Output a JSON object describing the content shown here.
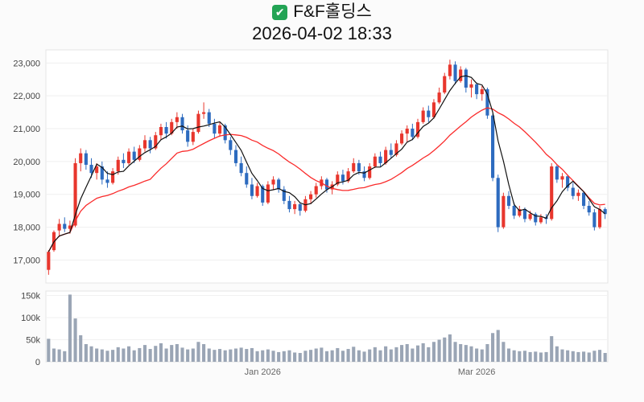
{
  "header": {
    "check_icon": "✔",
    "check_color": "#23a455",
    "title": "F&F홀딩스",
    "subtitle": "2026-04-02 18:33"
  },
  "chart_data": {
    "type": "candlestick",
    "title": "F&F홀딩스",
    "timestamp_label": "2026-04-02 18:33",
    "legend_position": "none",
    "grid": true,
    "y_axis": {
      "min": 16300,
      "max": 23400,
      "ticks": [
        17000,
        18000,
        19000,
        20000,
        21000,
        22000,
        23000
      ],
      "labels": [
        "17,000",
        "18,000",
        "19,000",
        "20,000",
        "21,000",
        "22,000",
        "23,000"
      ]
    },
    "volume_axis": {
      "max": 160000,
      "ticks": [
        0,
        50000,
        100000,
        150000
      ],
      "labels": [
        "0",
        "50k",
        "100k",
        "150k"
      ]
    },
    "x_ticks": [
      {
        "index": 40,
        "label": "Jan 2026"
      },
      {
        "index": 80,
        "label": "Mar 2026"
      }
    ],
    "ma": {
      "fast_window": 5,
      "slow_window": 20
    },
    "colors": {
      "up": "#e8362d",
      "down": "#2d6bbf",
      "ma_fast": "#111111",
      "ma_slow": "#fa2b2b",
      "volume": "#9aa5b5",
      "plot_bg": "#ffffff",
      "plot_border": "#e4e4e4",
      "gridline": "#efefef"
    },
    "candle_fields": [
      "open",
      "high",
      "low",
      "close",
      "volume"
    ],
    "candles": [
      [
        16700,
        17300,
        16550,
        17250,
        52000
      ],
      [
        17300,
        17900,
        17250,
        17850,
        30000
      ],
      [
        17900,
        18250,
        17700,
        18100,
        28000
      ],
      [
        18100,
        18300,
        17850,
        17950,
        24000
      ],
      [
        17950,
        18200,
        17800,
        18050,
        152000
      ],
      [
        18050,
        20100,
        18000,
        19950,
        98000
      ],
      [
        19950,
        20400,
        19700,
        20250,
        60000
      ],
      [
        20250,
        20350,
        19750,
        19900,
        40000
      ],
      [
        19900,
        20100,
        19500,
        19650,
        35000
      ],
      [
        19650,
        19950,
        19450,
        19850,
        30000
      ],
      [
        19850,
        20000,
        19300,
        19450,
        28000
      ],
      [
        19450,
        19700,
        19200,
        19350,
        25000
      ],
      [
        19350,
        19800,
        19300,
        19700,
        27000
      ],
      [
        19700,
        20150,
        19600,
        20050,
        33000
      ],
      [
        20050,
        20250,
        19800,
        19950,
        30000
      ],
      [
        19950,
        20400,
        19900,
        20300,
        35000
      ],
      [
        20300,
        20450,
        19950,
        20050,
        26000
      ],
      [
        20050,
        20500,
        20000,
        20400,
        31000
      ],
      [
        20400,
        20800,
        20300,
        20650,
        38000
      ],
      [
        20650,
        20750,
        20250,
        20400,
        29000
      ],
      [
        20400,
        20900,
        20350,
        20800,
        36000
      ],
      [
        20800,
        21150,
        20650,
        21050,
        42000
      ],
      [
        21050,
        21200,
        20700,
        20850,
        30000
      ],
      [
        20850,
        21300,
        20800,
        21200,
        38000
      ],
      [
        21200,
        21500,
        21000,
        21350,
        40000
      ],
      [
        21350,
        21450,
        20850,
        20950,
        32000
      ],
      [
        20950,
        21100,
        20450,
        20600,
        28000
      ],
      [
        20600,
        21000,
        20500,
        20900,
        30000
      ],
      [
        20900,
        21550,
        20850,
        21450,
        45000
      ],
      [
        21450,
        21800,
        21300,
        21500,
        40000
      ],
      [
        21500,
        21600,
        21050,
        21150,
        30000
      ],
      [
        21150,
        21300,
        20700,
        20850,
        27000
      ],
      [
        20850,
        21200,
        20750,
        21100,
        29000
      ],
      [
        21100,
        21150,
        20550,
        20650,
        26000
      ],
      [
        20650,
        20750,
        20200,
        20350,
        28000
      ],
      [
        20350,
        20500,
        19850,
        19950,
        30000
      ],
      [
        19950,
        20150,
        19550,
        19650,
        32000
      ],
      [
        19650,
        19850,
        19200,
        19300,
        29000
      ],
      [
        19300,
        19500,
        18850,
        18950,
        31000
      ],
      [
        18950,
        19350,
        18900,
        19250,
        24000
      ],
      [
        19250,
        19300,
        18650,
        18750,
        26000
      ],
      [
        18750,
        19400,
        18700,
        19300,
        28000
      ],
      [
        19300,
        19550,
        19150,
        19450,
        25000
      ],
      [
        19450,
        19500,
        19050,
        19150,
        22000
      ],
      [
        19150,
        19250,
        18700,
        18800,
        24000
      ],
      [
        18800,
        18950,
        18450,
        18550,
        26000
      ],
      [
        18550,
        18800,
        18400,
        18700,
        21000
      ],
      [
        18700,
        18750,
        18350,
        18500,
        20000
      ],
      [
        18500,
        18950,
        18450,
        18850,
        25000
      ],
      [
        18850,
        19100,
        18700,
        19000,
        27000
      ],
      [
        19000,
        19350,
        18900,
        19250,
        30000
      ],
      [
        19250,
        19550,
        19150,
        19450,
        32000
      ],
      [
        19450,
        19500,
        19050,
        19150,
        24000
      ],
      [
        19150,
        19400,
        19000,
        19300,
        26000
      ],
      [
        19300,
        19700,
        19250,
        19600,
        31000
      ],
      [
        19600,
        19750,
        19300,
        19400,
        25000
      ],
      [
        19400,
        19800,
        19350,
        19700,
        29000
      ],
      [
        19700,
        20100,
        19650,
        19950,
        34000
      ],
      [
        19950,
        20050,
        19600,
        19700,
        26000
      ],
      [
        19700,
        19850,
        19400,
        19500,
        23000
      ],
      [
        19500,
        19950,
        19450,
        19850,
        28000
      ],
      [
        19850,
        20250,
        19800,
        20150,
        33000
      ],
      [
        20150,
        20300,
        19850,
        19950,
        26000
      ],
      [
        19950,
        20450,
        19900,
        20350,
        35000
      ],
      [
        20350,
        20550,
        20100,
        20200,
        28000
      ],
      [
        20200,
        20650,
        20150,
        20550,
        33000
      ],
      [
        20550,
        20950,
        20500,
        20850,
        38000
      ],
      [
        20850,
        21100,
        20600,
        21000,
        40000
      ],
      [
        21000,
        21150,
        20650,
        20750,
        30000
      ],
      [
        20750,
        21300,
        20700,
        21200,
        37000
      ],
      [
        21200,
        21650,
        21150,
        21550,
        42000
      ],
      [
        21550,
        21700,
        21200,
        21350,
        33000
      ],
      [
        21350,
        21900,
        21300,
        21800,
        45000
      ],
      [
        21800,
        22250,
        21750,
        22100,
        50000
      ],
      [
        22100,
        22700,
        22050,
        22600,
        55000
      ],
      [
        22600,
        23100,
        22500,
        22950,
        62000
      ],
      [
        22950,
        23050,
        22350,
        22450,
        45000
      ],
      [
        22450,
        22900,
        22400,
        22800,
        40000
      ],
      [
        22800,
        22850,
        22100,
        22250,
        38000
      ],
      [
        22250,
        22500,
        21950,
        22350,
        35000
      ],
      [
        22350,
        22400,
        21900,
        22050,
        30000
      ],
      [
        22050,
        22300,
        21850,
        22200,
        28000
      ],
      [
        22200,
        22250,
        21300,
        21400,
        40000
      ],
      [
        21400,
        21450,
        19400,
        19500,
        65000
      ],
      [
        19500,
        19600,
        17850,
        18000,
        72000
      ],
      [
        18000,
        19050,
        17950,
        18950,
        45000
      ],
      [
        18950,
        19100,
        18550,
        18650,
        30000
      ],
      [
        18650,
        18750,
        18250,
        18350,
        26000
      ],
      [
        18350,
        18650,
        18300,
        18550,
        24000
      ],
      [
        18550,
        18600,
        18150,
        18250,
        25000
      ],
      [
        18250,
        18500,
        18200,
        18400,
        22000
      ],
      [
        18400,
        18450,
        18050,
        18150,
        23000
      ],
      [
        18150,
        18400,
        18100,
        18300,
        21000
      ],
      [
        18300,
        18400,
        18100,
        18250,
        22000
      ],
      [
        18250,
        19950,
        18200,
        19850,
        58000
      ],
      [
        19850,
        19900,
        19350,
        19450,
        35000
      ],
      [
        19450,
        19650,
        19200,
        19550,
        28000
      ],
      [
        19550,
        19600,
        19100,
        19200,
        26000
      ],
      [
        19200,
        19350,
        18850,
        18950,
        24000
      ],
      [
        18950,
        19150,
        18800,
        19050,
        22000
      ],
      [
        19050,
        19100,
        18550,
        18650,
        23000
      ],
      [
        18650,
        18800,
        18350,
        18450,
        21000
      ],
      [
        18450,
        18550,
        17900,
        18000,
        25000
      ],
      [
        18000,
        18650,
        17950,
        18550,
        27000
      ],
      [
        18550,
        18600,
        18250,
        18400,
        20000
      ]
    ]
  }
}
